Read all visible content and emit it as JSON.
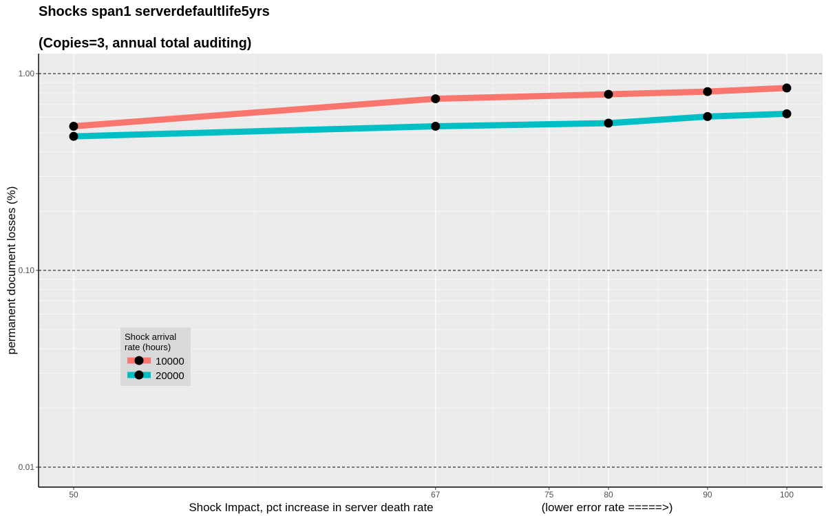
{
  "chart_data": {
    "type": "line",
    "title": "Shocks span1 serverdefaultlife5yrs",
    "subtitle": "(Copies=3, annual total auditing)",
    "xlabel": "Shock Impact, pct increase in server death rate",
    "xlabel_note": "(lower error rate =====>)",
    "ylabel": "permanent document losses (%)",
    "x_scale": "reciprocal",
    "y_scale": "log10",
    "x_ticks": [
      50,
      67,
      75,
      80,
      90,
      100
    ],
    "y_ticks": [
      "1.00",
      "0.10",
      "0.01"
    ],
    "ylim": [
      0.0082,
      1.25
    ],
    "grid": true,
    "legend": {
      "title_line1": "Shock arrival",
      "title_line2": "rate (hours)",
      "position": "bottom-left"
    },
    "series": [
      {
        "name": "10000",
        "color": "#F8766D",
        "x": [
          50,
          67,
          80,
          90,
          100
        ],
        "y": [
          0.54,
          0.745,
          0.785,
          0.81,
          0.845
        ]
      },
      {
        "name": "20000",
        "color": "#00BFC4",
        "x": [
          50,
          67,
          80,
          90,
          100
        ],
        "y": [
          0.48,
          0.54,
          0.56,
          0.605,
          0.625
        ]
      }
    ]
  }
}
